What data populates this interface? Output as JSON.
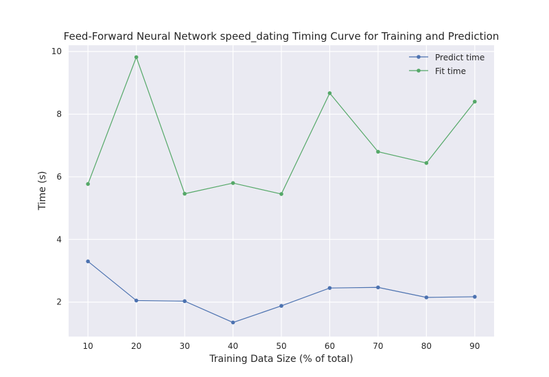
{
  "chart_data": {
    "type": "line",
    "title": "Feed-Forward Neural Network speed_dating Timing Curve for Training and Prediction",
    "xlabel": "Training Data Size (% of total)",
    "ylabel": "Time (s)",
    "x": [
      10,
      20,
      30,
      40,
      50,
      60,
      70,
      80,
      90
    ],
    "xticks": [
      "10",
      "20",
      "30",
      "40",
      "50",
      "60",
      "70",
      "80",
      "90"
    ],
    "yticks": [
      "2",
      "4",
      "6",
      "8",
      "10"
    ],
    "xlim": [
      6,
      94
    ],
    "ylim": [
      0.9,
      10.2
    ],
    "grid": true,
    "legend_position": "top-right",
    "series": [
      {
        "name": "Predict time",
        "color": "#4c72b0",
        "values": [
          3.3,
          2.05,
          2.03,
          1.35,
          1.88,
          2.45,
          2.47,
          2.15,
          2.17
        ]
      },
      {
        "name": "Fit time",
        "color": "#55a868",
        "values": [
          5.77,
          9.82,
          5.46,
          5.8,
          5.45,
          8.67,
          6.8,
          6.44,
          8.4
        ]
      }
    ]
  }
}
